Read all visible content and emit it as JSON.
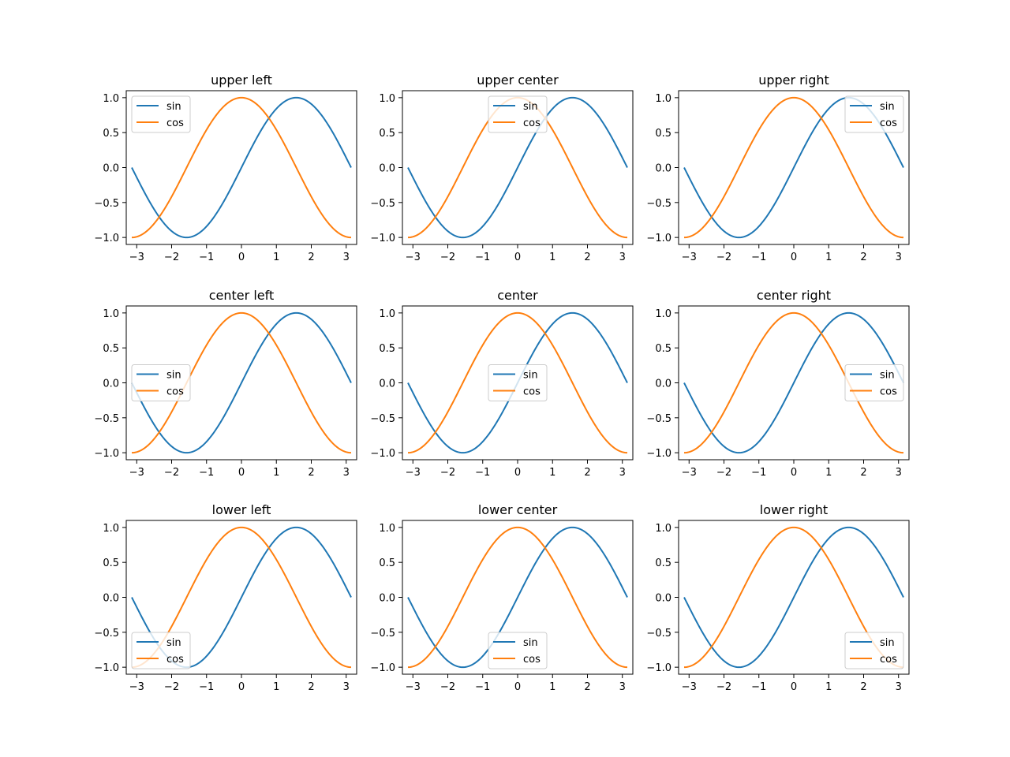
{
  "chart_data": [
    {
      "type": "line",
      "title": "upper left",
      "legend_loc": "upper left",
      "xlim": [
        -3.3,
        3.3
      ],
      "ylim": [
        -1.1,
        1.1
      ],
      "xticks": [
        -3,
        -2,
        -1,
        0,
        1,
        2,
        3
      ],
      "yticks": [
        -1.0,
        -0.5,
        0.0,
        0.5,
        1.0
      ],
      "series": [
        {
          "name": "sin",
          "function": "sin(x)",
          "color": "#1f77b4"
        },
        {
          "name": "cos",
          "function": "cos(x)",
          "color": "#ff7f0e"
        }
      ]
    },
    {
      "type": "line",
      "title": "upper center",
      "legend_loc": "upper center",
      "xlim": [
        -3.3,
        3.3
      ],
      "ylim": [
        -1.1,
        1.1
      ],
      "xticks": [
        -3,
        -2,
        -1,
        0,
        1,
        2,
        3
      ],
      "yticks": [
        -1.0,
        -0.5,
        0.0,
        0.5,
        1.0
      ],
      "series": [
        {
          "name": "sin",
          "function": "sin(x)",
          "color": "#1f77b4"
        },
        {
          "name": "cos",
          "function": "cos(x)",
          "color": "#ff7f0e"
        }
      ]
    },
    {
      "type": "line",
      "title": "upper right",
      "legend_loc": "upper right",
      "xlim": [
        -3.3,
        3.3
      ],
      "ylim": [
        -1.1,
        1.1
      ],
      "xticks": [
        -3,
        -2,
        -1,
        0,
        1,
        2,
        3
      ],
      "yticks": [
        -1.0,
        -0.5,
        0.0,
        0.5,
        1.0
      ],
      "series": [
        {
          "name": "sin",
          "function": "sin(x)",
          "color": "#1f77b4"
        },
        {
          "name": "cos",
          "function": "cos(x)",
          "color": "#ff7f0e"
        }
      ]
    },
    {
      "type": "line",
      "title": "center left",
      "legend_loc": "center left",
      "xlim": [
        -3.3,
        3.3
      ],
      "ylim": [
        -1.1,
        1.1
      ],
      "xticks": [
        -3,
        -2,
        -1,
        0,
        1,
        2,
        3
      ],
      "yticks": [
        -1.0,
        -0.5,
        0.0,
        0.5,
        1.0
      ],
      "series": [
        {
          "name": "sin",
          "function": "sin(x)",
          "color": "#1f77b4"
        },
        {
          "name": "cos",
          "function": "cos(x)",
          "color": "#ff7f0e"
        }
      ]
    },
    {
      "type": "line",
      "title": "center",
      "legend_loc": "center",
      "xlim": [
        -3.3,
        3.3
      ],
      "ylim": [
        -1.1,
        1.1
      ],
      "xticks": [
        -3,
        -2,
        -1,
        0,
        1,
        2,
        3
      ],
      "yticks": [
        -1.0,
        -0.5,
        0.0,
        0.5,
        1.0
      ],
      "series": [
        {
          "name": "sin",
          "function": "sin(x)",
          "color": "#1f77b4"
        },
        {
          "name": "cos",
          "function": "cos(x)",
          "color": "#ff7f0e"
        }
      ]
    },
    {
      "type": "line",
      "title": "center right",
      "legend_loc": "center right",
      "xlim": [
        -3.3,
        3.3
      ],
      "ylim": [
        -1.1,
        1.1
      ],
      "xticks": [
        -3,
        -2,
        -1,
        0,
        1,
        2,
        3
      ],
      "yticks": [
        -1.0,
        -0.5,
        0.0,
        0.5,
        1.0
      ],
      "series": [
        {
          "name": "sin",
          "function": "sin(x)",
          "color": "#1f77b4"
        },
        {
          "name": "cos",
          "function": "cos(x)",
          "color": "#ff7f0e"
        }
      ]
    },
    {
      "type": "line",
      "title": "lower left",
      "legend_loc": "lower left",
      "xlim": [
        -3.3,
        3.3
      ],
      "ylim": [
        -1.1,
        1.1
      ],
      "xticks": [
        -3,
        -2,
        -1,
        0,
        1,
        2,
        3
      ],
      "yticks": [
        -1.0,
        -0.5,
        0.0,
        0.5,
        1.0
      ],
      "series": [
        {
          "name": "sin",
          "function": "sin(x)",
          "color": "#1f77b4"
        },
        {
          "name": "cos",
          "function": "cos(x)",
          "color": "#ff7f0e"
        }
      ]
    },
    {
      "type": "line",
      "title": "lower center",
      "legend_loc": "lower center",
      "xlim": [
        -3.3,
        3.3
      ],
      "ylim": [
        -1.1,
        1.1
      ],
      "xticks": [
        -3,
        -2,
        -1,
        0,
        1,
        2,
        3
      ],
      "yticks": [
        -1.0,
        -0.5,
        0.0,
        0.5,
        1.0
      ],
      "series": [
        {
          "name": "sin",
          "function": "sin(x)",
          "color": "#1f77b4"
        },
        {
          "name": "cos",
          "function": "cos(x)",
          "color": "#ff7f0e"
        }
      ]
    },
    {
      "type": "line",
      "title": "lower right",
      "legend_loc": "lower right",
      "xlim": [
        -3.3,
        3.3
      ],
      "ylim": [
        -1.1,
        1.1
      ],
      "xticks": [
        -3,
        -2,
        -1,
        0,
        1,
        2,
        3
      ],
      "yticks": [
        -1.0,
        -0.5,
        0.0,
        0.5,
        1.0
      ],
      "series": [
        {
          "name": "sin",
          "function": "sin(x)",
          "color": "#1f77b4"
        },
        {
          "name": "cos",
          "function": "cos(x)",
          "color": "#ff7f0e"
        }
      ]
    }
  ]
}
